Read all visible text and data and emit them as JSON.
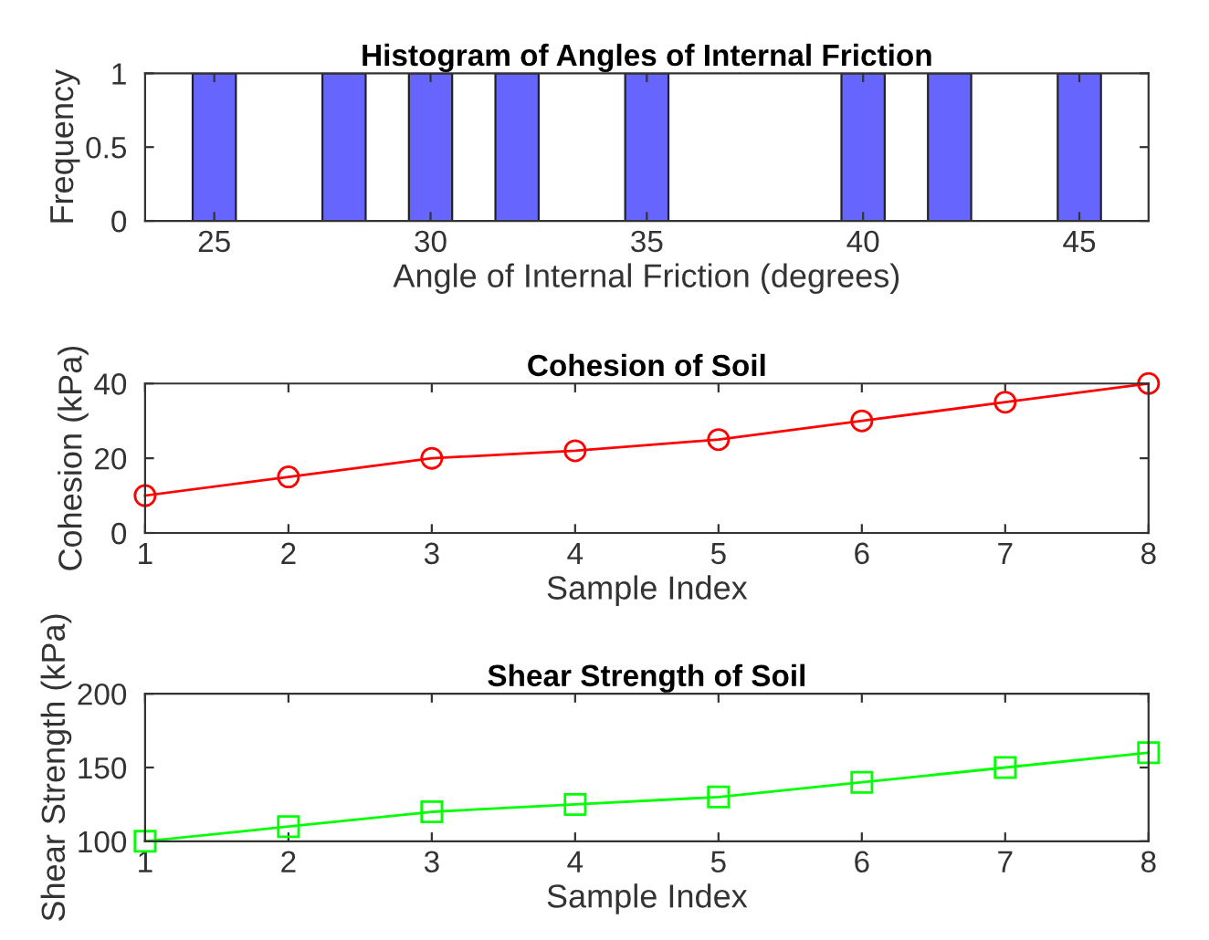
{
  "chart_data": [
    {
      "type": "histogram",
      "title": "Histogram of Angles of Internal Friction",
      "xlabel": "Angle of Internal Friction (degrees)",
      "ylabel": "Frequency",
      "bins": [
        24.5,
        25.5,
        26.5,
        27.5,
        28.5,
        29.5,
        30.5,
        31.5,
        32.5,
        33.5,
        34.5,
        35.5,
        36.5,
        37.5,
        38.5,
        39.5,
        40.5,
        41.5,
        42.5,
        43.5,
        44.5,
        45.5
      ],
      "values": [
        1,
        0,
        0,
        1,
        0,
        1,
        0,
        1,
        0,
        0,
        1,
        0,
        0,
        0,
        0,
        1,
        0,
        1,
        0,
        0,
        1
      ],
      "color": "#6666ff",
      "xlim": [
        23.4,
        46.6
      ],
      "xticks": [
        25,
        30,
        35,
        40,
        45
      ],
      "ylim": [
        0,
        1
      ],
      "yticks": [
        0,
        0.5,
        1
      ],
      "grid": false,
      "legend": false
    },
    {
      "type": "line",
      "title": "Cohesion of Soil",
      "xlabel": "Sample Index",
      "ylabel": "Cohesion (kPa)",
      "x": [
        1,
        2,
        3,
        4,
        5,
        6,
        7,
        8
      ],
      "series": [
        {
          "color": "#ff0000",
          "values": [
            10,
            15,
            20,
            22,
            25,
            30,
            35,
            40
          ]
        }
      ],
      "marker": "circle",
      "line_style": "solid",
      "xlim": [
        1,
        8
      ],
      "xticks": [
        1,
        2,
        3,
        4,
        5,
        6,
        7,
        8
      ],
      "ylim": [
        0,
        40
      ],
      "yticks": [
        0,
        20,
        40
      ],
      "grid": false,
      "legend": false
    },
    {
      "type": "line",
      "title": "Shear Strength of Soil",
      "xlabel": "Sample Index",
      "ylabel": "Shear Strength (kPa)",
      "x": [
        1,
        2,
        3,
        4,
        5,
        6,
        7,
        8
      ],
      "series": [
        {
          "color": "#00ff00",
          "values": [
            100,
            110,
            120,
            125,
            130,
            140,
            150,
            160
          ]
        }
      ],
      "marker": "square",
      "line_style": "solid",
      "xlim": [
        1,
        8
      ],
      "xticks": [
        1,
        2,
        3,
        4,
        5,
        6,
        7,
        8
      ],
      "ylim": [
        100,
        200
      ],
      "yticks": [
        100,
        150,
        200
      ],
      "grid": false,
      "legend": false
    }
  ]
}
